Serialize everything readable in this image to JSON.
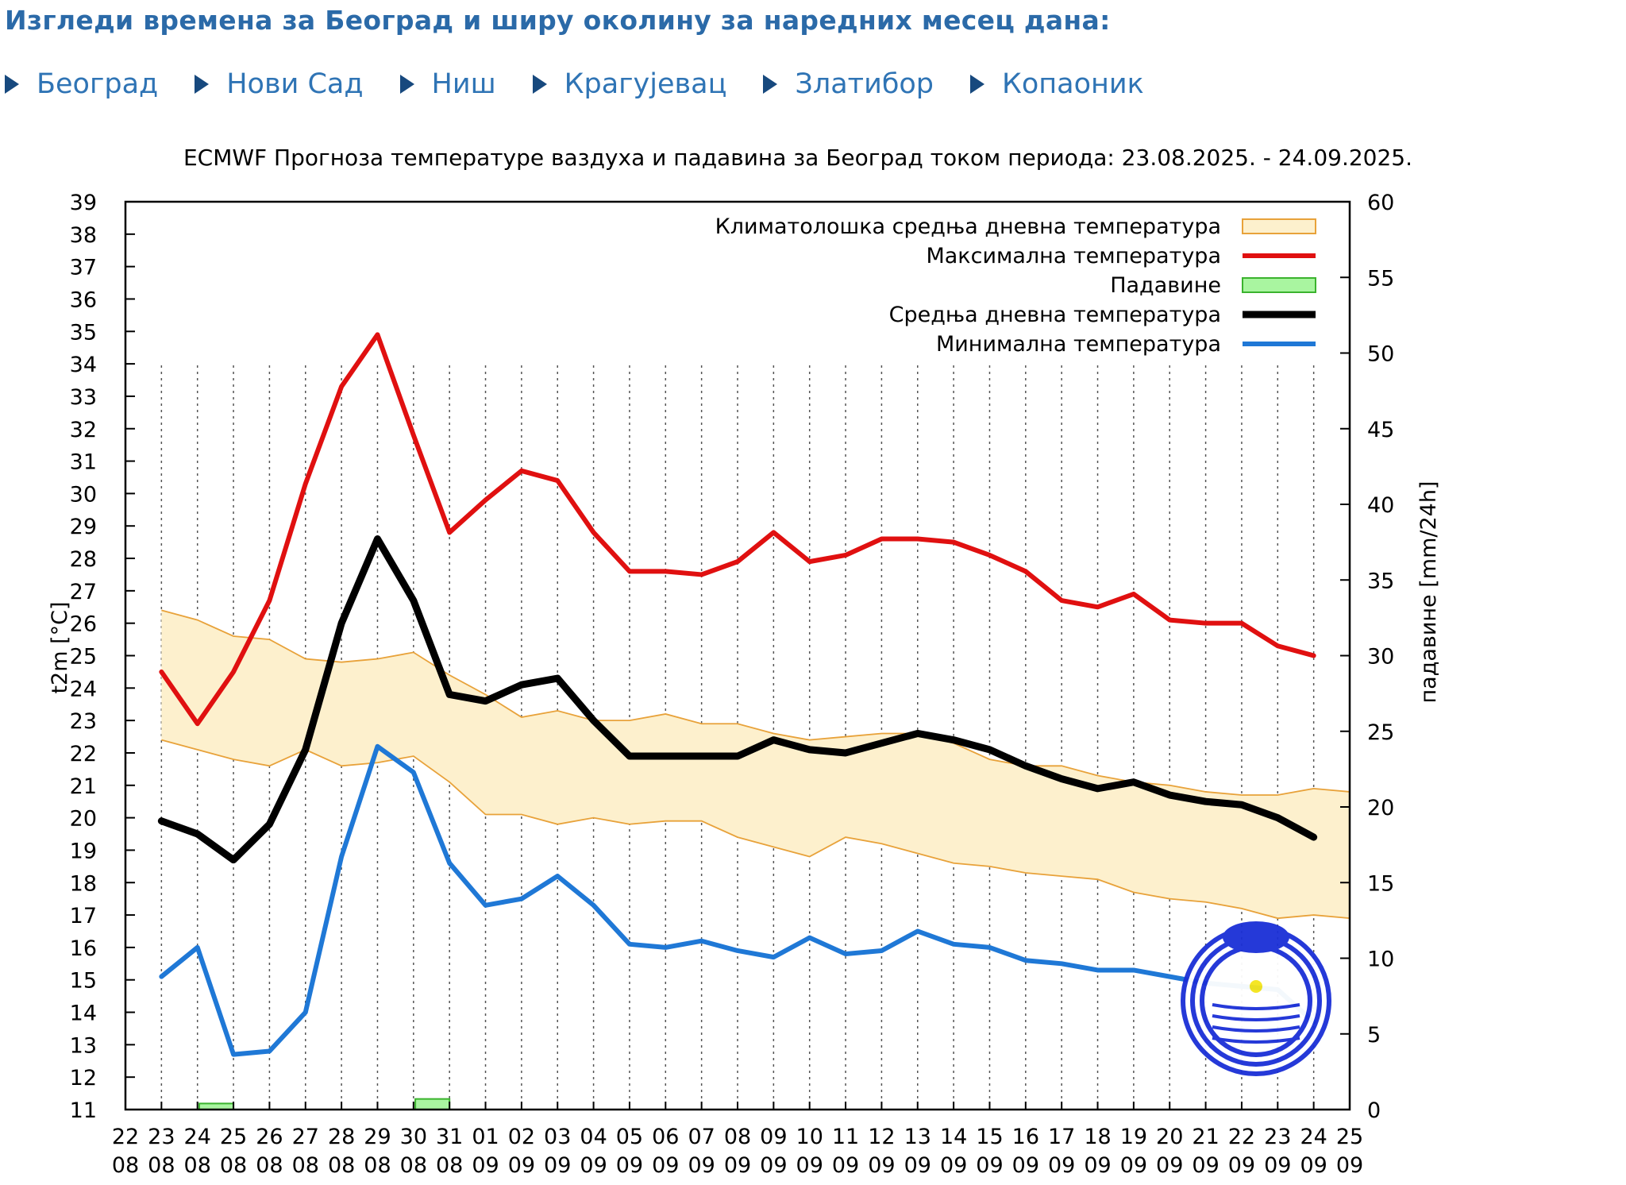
{
  "page": {
    "heading": "Изгледи времена за Београд и ширу околину за наредних месец дана:",
    "nav": [
      {
        "label": "Београд"
      },
      {
        "label": "Нови Сад"
      },
      {
        "label": "Ниш"
      },
      {
        "label": "Крагујевац"
      },
      {
        "label": "Златибор"
      },
      {
        "label": "Копаоник"
      }
    ],
    "arrow_color": "#17497e",
    "link_color": "#2f74b5"
  },
  "chart_data": {
    "type": "line",
    "title": "ECMWF Прогноза температуре ваздуха и падавина за Београд током периода: 23.08.2025. - 24.09.2025.",
    "ylabel": "t2m [°C]",
    "y2label": "падавине [mm/24h]",
    "ylim": [
      11,
      39
    ],
    "y2lim": [
      0,
      60
    ],
    "yticks": [
      11,
      12,
      13,
      14,
      15,
      16,
      17,
      18,
      19,
      20,
      21,
      22,
      23,
      24,
      25,
      26,
      27,
      28,
      29,
      30,
      31,
      32,
      33,
      34,
      35,
      36,
      37,
      38,
      39
    ],
    "y2ticks": [
      0,
      5,
      10,
      15,
      20,
      25,
      30,
      35,
      40,
      45,
      50,
      55,
      60
    ],
    "xticks": [
      [
        "22",
        "08"
      ],
      [
        "23",
        "08"
      ],
      [
        "24",
        "08"
      ],
      [
        "25",
        "08"
      ],
      [
        "26",
        "08"
      ],
      [
        "27",
        "08"
      ],
      [
        "28",
        "08"
      ],
      [
        "29",
        "08"
      ],
      [
        "30",
        "08"
      ],
      [
        "31",
        "08"
      ],
      [
        "01",
        "09"
      ],
      [
        "02",
        "09"
      ],
      [
        "03",
        "09"
      ],
      [
        "04",
        "09"
      ],
      [
        "05",
        "09"
      ],
      [
        "06",
        "09"
      ],
      [
        "07",
        "09"
      ],
      [
        "08",
        "09"
      ],
      [
        "09",
        "09"
      ],
      [
        "10",
        "09"
      ],
      [
        "11",
        "09"
      ],
      [
        "12",
        "09"
      ],
      [
        "13",
        "09"
      ],
      [
        "14",
        "09"
      ],
      [
        "15",
        "09"
      ],
      [
        "16",
        "09"
      ],
      [
        "17",
        "09"
      ],
      [
        "18",
        "09"
      ],
      [
        "19",
        "09"
      ],
      [
        "20",
        "09"
      ],
      [
        "21",
        "09"
      ],
      [
        "22",
        "09"
      ],
      [
        "23",
        "09"
      ],
      [
        "24",
        "09"
      ],
      [
        "25",
        "09"
      ]
    ],
    "x_index_range": [
      0,
      34
    ],
    "grid": "vertical dotted",
    "legend_position": "top-right",
    "clim_band": {
      "name": "Климатолошка средња дневна температура",
      "color": "#fdf0cd",
      "edge_color": "#e8a23a",
      "upper": [
        26.4,
        26.1,
        25.6,
        25.5,
        24.9,
        24.8,
        24.9,
        25.1,
        24.4,
        23.8,
        23.1,
        23.3,
        23.0,
        23.0,
        23.2,
        22.9,
        22.9,
        22.6,
        22.4,
        22.5,
        22.6,
        22.6,
        22.3,
        21.8,
        21.6,
        21.6,
        21.3,
        21.1,
        21.0,
        20.8,
        20.7,
        20.7,
        20.9,
        20.8
      ],
      "lower": [
        22.4,
        22.1,
        21.8,
        21.6,
        22.1,
        21.6,
        21.7,
        21.9,
        21.1,
        20.1,
        20.1,
        19.8,
        20.0,
        19.8,
        19.9,
        19.9,
        19.4,
        19.1,
        18.8,
        19.4,
        19.2,
        18.9,
        18.6,
        18.5,
        18.3,
        18.2,
        18.1,
        17.7,
        17.5,
        17.4,
        17.2,
        16.9,
        17.0,
        16.9
      ]
    },
    "series": [
      {
        "name": "Максимална температура",
        "color": "#e01010",
        "values": [
          24.5,
          22.9,
          24.5,
          26.7,
          30.3,
          33.3,
          34.9,
          31.8,
          28.8,
          29.8,
          30.7,
          30.4,
          28.8,
          27.6,
          27.6,
          27.5,
          27.9,
          28.8,
          27.9,
          28.1,
          28.6,
          28.6,
          28.5,
          28.1,
          27.6,
          26.7,
          26.5,
          26.9,
          26.1,
          26.0,
          26.0,
          25.3,
          25.0
        ]
      },
      {
        "name": "Средња дневна температура",
        "color": "#000000",
        "values": [
          19.9,
          19.5,
          18.7,
          19.8,
          22.1,
          26.0,
          28.6,
          26.7,
          23.8,
          23.6,
          24.1,
          24.3,
          23.0,
          21.9,
          21.9,
          21.9,
          21.9,
          22.4,
          22.1,
          22.0,
          22.3,
          22.6,
          22.4,
          22.1,
          21.6,
          21.2,
          20.9,
          21.1,
          20.7,
          20.5,
          20.4,
          20.0,
          19.4
        ]
      },
      {
        "name": "Минимална температура",
        "color": "#1f78d6",
        "values": [
          15.1,
          16.0,
          12.7,
          12.8,
          14.0,
          18.8,
          22.2,
          21.4,
          18.6,
          17.3,
          17.5,
          18.2,
          17.3,
          16.1,
          16.0,
          16.2,
          15.9,
          15.7,
          16.3,
          15.8,
          15.9,
          16.5,
          16.1,
          16.0,
          15.6,
          15.5,
          15.3,
          15.3,
          15.1,
          14.9,
          14.8,
          14.7,
          13.7
        ]
      },
      {
        "name": "Падавине",
        "color": "#a9f5a0",
        "edge_color": "#3bb32e",
        "axis": "y2",
        "bars": [
          {
            "x": 2,
            "value": 0.4
          },
          {
            "x": 8,
            "value": 0.7
          }
        ]
      }
    ],
    "legend_order": [
      "Климатолошка средња дневна температура",
      "Максимална температура",
      "Падавине",
      "Средња дневна температура",
      "Минимална температура"
    ]
  }
}
